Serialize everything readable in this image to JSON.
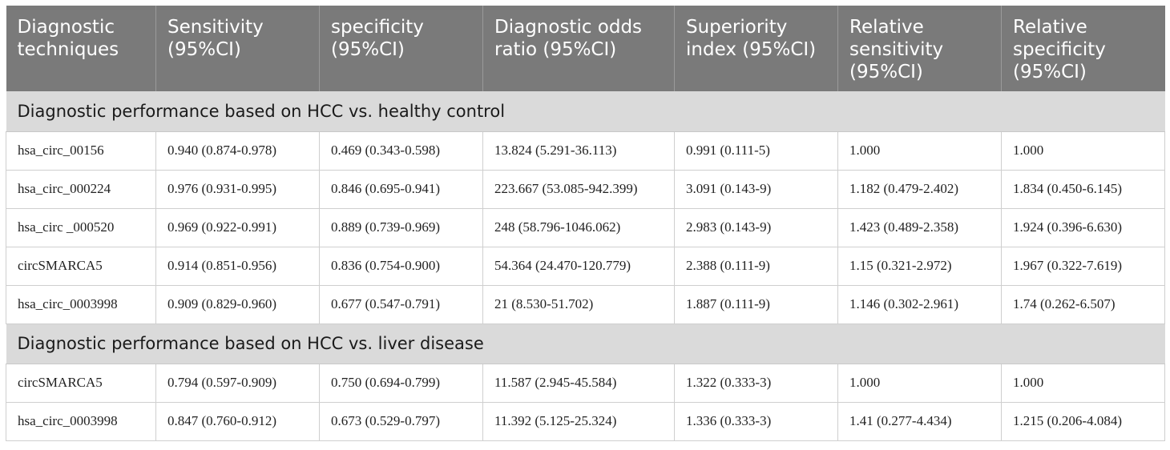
{
  "headers": [
    "Diagnostic techniques",
    "Sensitivity (95%CI)",
    "specificity (95%CI)",
    "Diagnostic odds ratio (95%CI)",
    "Superiority index (95%CI)",
    "Relative sensitivity (95%CI)",
    "Relative specificity (95%CI)"
  ],
  "sections": [
    {
      "title": "Diagnostic performance based on HCC vs. healthy control",
      "rows": [
        [
          "hsa_circ_00156",
          "0.940 (0.874-0.978)",
          "0.469 (0.343-0.598)",
          "13.824 (5.291-36.113)",
          "0.991 (0.111-5)",
          "1.000",
          "1.000"
        ],
        [
          "hsa_circ_000224",
          "0.976 (0.931-0.995)",
          "0.846 (0.695-0.941)",
          "223.667 (53.085-942.399)",
          "3.091 (0.143-9)",
          "1.182 (0.479-2.402)",
          "1.834 (0.450-6.145)"
        ],
        [
          "hsa_circ _000520",
          "0.969 (0.922-0.991)",
          "0.889 (0.739-0.969)",
          "248 (58.796-1046.062)",
          "2.983 (0.143-9)",
          "1.423 (0.489-2.358)",
          "1.924 (0.396-6.630)"
        ],
        [
          "circSMARCA5",
          "0.914 (0.851-0.956)",
          "0.836 (0.754-0.900)",
          "54.364 (24.470-120.779)",
          "2.388 (0.111-9)",
          "1.15 (0.321-2.972)",
          "1.967 (0.322-7.619)"
        ],
        [
          "hsa_circ_0003998",
          "0.909 (0.829-0.960)",
          "0.677 (0.547-0.791)",
          "21 (8.530-51.702)",
          "1.887 (0.111-9)",
          "1.146 (0.302-2.961)",
          "1.74 (0.262-6.507)"
        ]
      ]
    },
    {
      "title": "Diagnostic performance based on HCC vs. liver disease",
      "rows": [
        [
          "circSMARCA5",
          "0.794 (0.597-0.909)",
          "0.750 (0.694-0.799)",
          "11.587 (2.945-45.584)",
          "1.322 (0.333-3)",
          "1.000",
          "1.000"
        ],
        [
          "hsa_circ_0003998",
          "0.847 (0.760-0.912)",
          "0.673 (0.529-0.797)",
          "11.392 (5.125-25.324)",
          "1.336 (0.333-3)",
          "1.41 (0.277-4.434)",
          "1.215 (0.206-4.084)"
        ]
      ]
    }
  ]
}
